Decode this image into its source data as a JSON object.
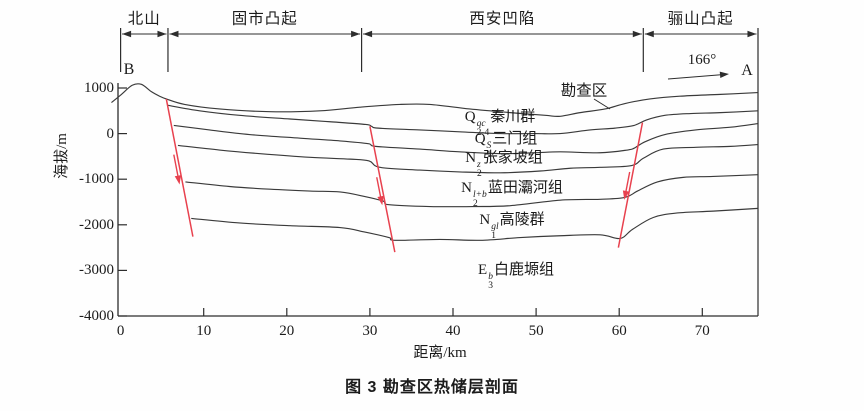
{
  "figure_caption": "图 3  勘查区热储层剖面",
  "endpoints": {
    "left": "B",
    "right": "A"
  },
  "bearing_label": "166°",
  "survey_area_label": "勘查区",
  "axes": {
    "y_title": "海拔/m",
    "x_title": "距离/km",
    "y_ticks": [
      1000,
      0,
      -1000,
      -2000,
      -3000,
      -4000
    ],
    "x_ticks": [
      0,
      10,
      20,
      30,
      40,
      50,
      60,
      70
    ],
    "x_range_km": [
      0,
      76.7
    ],
    "y_range_m": [
      -4000,
      1000
    ]
  },
  "sections": [
    {
      "label": "北山",
      "from_km": 0,
      "to_km": 5.7
    },
    {
      "label": "固市凸起",
      "from_km": 5.7,
      "to_km": 29
    },
    {
      "label": "西安凹陷",
      "from_km": 29,
      "to_km": 62.9
    },
    {
      "label": "骊山凸起",
      "from_km": 62.9,
      "to_km": 76.7
    }
  ],
  "strata_labels": [
    {
      "base": "Q",
      "sub": "2-4",
      "sup": "qc",
      "name": "秦川群"
    },
    {
      "base": "Q",
      "sub": "1",
      "sup": "S",
      "name": "三门组"
    },
    {
      "base": "N",
      "sub": "2",
      "sup": "z",
      "name": "张家坡组"
    },
    {
      "base": "N",
      "sub": "2",
      "sup": "l+b",
      "name": "蓝田灞河组"
    },
    {
      "base": "N",
      "sub": "1",
      "sup": "gl",
      "name": "高陵群"
    },
    {
      "base": "E",
      "sub": "3",
      "sup": "b",
      "name": "白鹿塬组"
    }
  ],
  "colors": {
    "stratum_line": "#3a3a3a",
    "fault": "#e8414e",
    "axis": "#2d2d2d",
    "text": "#1b1b1b"
  },
  "chart_data": {
    "type": "line",
    "subtype": "geological-cross-section",
    "title": "图 3  勘查区热储层剖面",
    "xlabel": "距离/km",
    "ylabel": "海拔/m",
    "xlim": [
      0,
      76.7
    ],
    "ylim": [
      -4000,
      1000
    ],
    "grid": false,
    "horizons": [
      {
        "id": "ground-surface",
        "points": [
          [
            -1.1,
            680
          ],
          [
            0.1,
            860
          ],
          [
            1.4,
            1060
          ],
          [
            2.5,
            1080
          ],
          [
            3.7,
            920
          ],
          [
            4.7,
            820
          ],
          [
            5.5,
            760
          ],
          [
            7.7,
            640
          ],
          [
            11.9,
            540
          ],
          [
            18,
            480
          ],
          [
            24,
            500
          ],
          [
            28.8,
            580
          ],
          [
            33.6,
            640
          ],
          [
            37.2,
            640
          ],
          [
            42,
            540
          ],
          [
            46.9,
            460
          ],
          [
            51.1,
            400
          ],
          [
            52.9,
            380
          ],
          [
            55.3,
            460
          ],
          [
            58.3,
            540
          ],
          [
            60.7,
            660
          ],
          [
            63.7,
            760
          ],
          [
            67.3,
            820
          ],
          [
            72.2,
            860
          ],
          [
            76.7,
            900
          ]
        ]
      },
      {
        "id": "base-qinchuan",
        "points": [
          [
            5.7,
            620
          ],
          [
            9.5,
            500
          ],
          [
            14.3,
            400
          ],
          [
            20.4,
            320
          ],
          [
            25.2,
            260
          ],
          [
            29.5,
            200
          ],
          [
            30.2,
            160
          ],
          [
            31,
            120
          ],
          [
            36,
            80
          ],
          [
            40.8,
            40
          ],
          [
            45.7,
            0
          ],
          [
            49.9,
            0
          ],
          [
            52.9,
            0
          ],
          [
            56.5,
            80
          ],
          [
            59.5,
            120
          ],
          [
            61.8,
            180
          ],
          [
            63.3,
            300
          ],
          [
            65.5,
            400
          ],
          [
            68.6,
            440
          ],
          [
            72.2,
            460
          ],
          [
            76.7,
            500
          ]
        ]
      },
      {
        "id": "base-sanmen",
        "points": [
          [
            6.4,
            180
          ],
          [
            10.7,
            80
          ],
          [
            15.5,
            -20
          ],
          [
            21.6,
            -100
          ],
          [
            26.4,
            -160
          ],
          [
            29.8,
            -220
          ],
          [
            30.7,
            -280
          ],
          [
            36,
            -340
          ],
          [
            40.8,
            -400
          ],
          [
            45.7,
            -440
          ],
          [
            49.9,
            -420
          ],
          [
            52.9,
            -400
          ],
          [
            57.7,
            -420
          ],
          [
            61,
            -360
          ],
          [
            61.8,
            -320
          ],
          [
            63.1,
            -180
          ],
          [
            65.5,
            -20
          ],
          [
            69.2,
            80
          ],
          [
            73.4,
            140
          ],
          [
            76.7,
            220
          ]
        ]
      },
      {
        "id": "base-zhangjiapo",
        "points": [
          [
            6.9,
            -260
          ],
          [
            11.9,
            -360
          ],
          [
            16.8,
            -440
          ],
          [
            22.8,
            -520
          ],
          [
            27.6,
            -560
          ],
          [
            29.9,
            -600
          ],
          [
            31.2,
            -740
          ],
          [
            36,
            -800
          ],
          [
            40.8,
            -840
          ],
          [
            45.7,
            -860
          ],
          [
            50.5,
            -820
          ],
          [
            54.1,
            -760
          ],
          [
            57.7,
            -740
          ],
          [
            61.5,
            -700
          ],
          [
            62.9,
            -540
          ],
          [
            65.3,
            -340
          ],
          [
            69.2,
            -300
          ],
          [
            73.4,
            -280
          ],
          [
            76.7,
            -240
          ]
        ]
      },
      {
        "id": "base-lantian-bahe",
        "points": [
          [
            7.8,
            -1060
          ],
          [
            13.1,
            -1160
          ],
          [
            18,
            -1220
          ],
          [
            22.8,
            -1260
          ],
          [
            26.4,
            -1280
          ],
          [
            29.4,
            -1380
          ],
          [
            31.6,
            -1480
          ],
          [
            32.3,
            -1560
          ],
          [
            37.2,
            -1600
          ],
          [
            42.4,
            -1600
          ],
          [
            46.9,
            -1580
          ],
          [
            52.9,
            -1460
          ],
          [
            57.7,
            -1440
          ],
          [
            60.7,
            -1400
          ],
          [
            62.2,
            -1260
          ],
          [
            64.6,
            -1060
          ],
          [
            67.7,
            -960
          ],
          [
            71.3,
            -940
          ],
          [
            76.7,
            -900
          ]
        ]
      },
      {
        "id": "base-gaoling",
        "points": [
          [
            8.5,
            -1860
          ],
          [
            14.3,
            -1960
          ],
          [
            20.4,
            -2020
          ],
          [
            26.4,
            -2060
          ],
          [
            29.4,
            -2160
          ],
          [
            32.3,
            -2280
          ],
          [
            33,
            -2340
          ],
          [
            38.4,
            -2320
          ],
          [
            43.3,
            -2340
          ],
          [
            48.1,
            -2280
          ],
          [
            52.9,
            -2240
          ],
          [
            57.7,
            -2220
          ],
          [
            60.1,
            -2300
          ],
          [
            61.6,
            -2100
          ],
          [
            64.1,
            -1840
          ],
          [
            67,
            -1740
          ],
          [
            71.3,
            -1700
          ],
          [
            76.7,
            -1640
          ]
        ]
      }
    ],
    "faults": [
      {
        "id": "F1",
        "points": [
          [
            5.5,
            760
          ],
          [
            8.7,
            -2260
          ]
        ]
      },
      {
        "id": "F2",
        "points": [
          [
            30,
            160
          ],
          [
            33,
            -2600
          ]
        ]
      },
      {
        "id": "F3",
        "points": [
          [
            62.8,
            240
          ],
          [
            59.9,
            -2500
          ]
        ]
      }
    ]
  }
}
